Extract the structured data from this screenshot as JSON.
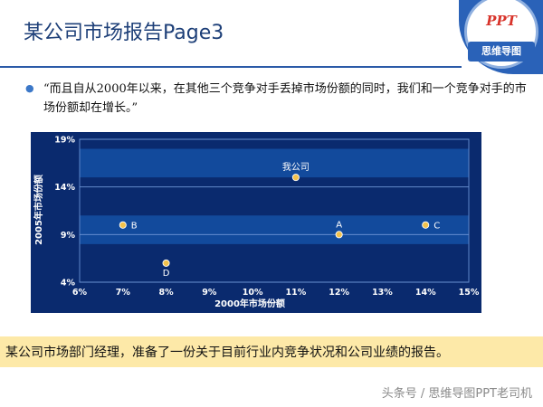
{
  "slide": {
    "title": "某公司市场报告Page3",
    "bullet": "“而且自从2000年以来，在其他三个竞争对手丢掉市场份额的同时，我们和一个竞争对手的市场份额却在增长。”",
    "summary": "某公司市场部门经理，准备了一份关于目前行业内竞争状况和公司业绩的报告。",
    "watermark": "头条号 / 思维导图PPT老司机"
  },
  "logo": {
    "ppt_text": "PPT",
    "caption": "思维导图"
  },
  "colors": {
    "chart_background": "#0a2a6e",
    "band_light": "#124a9c",
    "point_fill": "#f3c24c",
    "title_color": "#1d3f78",
    "summary_background": "#fde9a8"
  },
  "chart_data": {
    "type": "scatter",
    "title": "",
    "xlabel": "2000年市场份额",
    "ylabel": "2005年市场份额",
    "xlim": [
      6,
      15
    ],
    "ylim": [
      4,
      19
    ],
    "x_ticks": [
      "6%",
      "7%",
      "8%",
      "9%",
      "10%",
      "11%",
      "12%",
      "13%",
      "14%",
      "15%"
    ],
    "y_ticks": [
      "4%",
      "9%",
      "14%",
      "19%"
    ],
    "points": [
      {
        "label": "我公司",
        "x": 11,
        "y": 15,
        "label_position": "above"
      },
      {
        "label": "A",
        "x": 12,
        "y": 9,
        "label_position": "above"
      },
      {
        "label": "B",
        "x": 7,
        "y": 10,
        "label_position": "right"
      },
      {
        "label": "C",
        "x": 14,
        "y": 10,
        "label_position": "right"
      },
      {
        "label": "D",
        "x": 8,
        "y": 6,
        "label_position": "below"
      }
    ]
  }
}
